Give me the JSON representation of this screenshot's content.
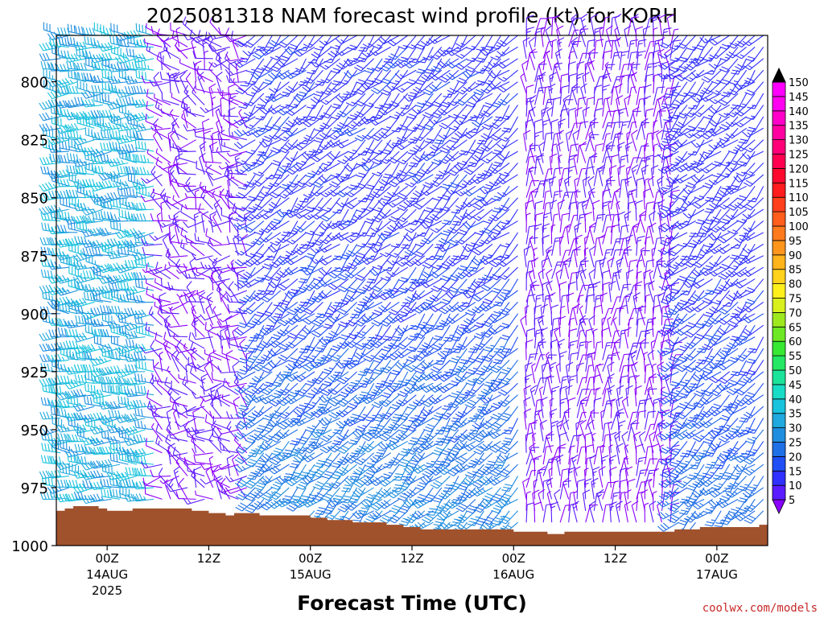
{
  "chart_data": {
    "type": "wind-barb time-height profile",
    "title": "2025081318 NAM forecast wind profile (kt) for KORH",
    "xlabel": "Forecast Time (UTC)",
    "ylabel": "",
    "y_axis": {
      "ticks": [
        800,
        825,
        850,
        875,
        900,
        925,
        950,
        975,
        1000
      ],
      "range_hpa": [
        780,
        1000
      ],
      "inverted": true
    },
    "x_axis": {
      "ticks": [
        {
          "hours": 6,
          "label": "00Z",
          "sub1": "14AUG",
          "sub2": "2025"
        },
        {
          "hours": 18,
          "label": "12Z",
          "sub1": "",
          "sub2": ""
        },
        {
          "hours": 30,
          "label": "00Z",
          "sub1": "15AUG",
          "sub2": ""
        },
        {
          "hours": 42,
          "label": "12Z",
          "sub1": "",
          "sub2": ""
        },
        {
          "hours": 54,
          "label": "00Z",
          "sub1": "16AUG",
          "sub2": ""
        },
        {
          "hours": 66,
          "label": "12Z",
          "sub1": "",
          "sub2": ""
        },
        {
          "hours": 78,
          "label": "00Z",
          "sub1": "17AUG",
          "sub2": ""
        }
      ],
      "range_hours": [
        0,
        84
      ]
    },
    "colorbar": {
      "levels": [
        5,
        10,
        15,
        20,
        25,
        30,
        35,
        40,
        45,
        50,
        55,
        60,
        65,
        70,
        75,
        80,
        85,
        90,
        95,
        100,
        105,
        110,
        115,
        120,
        125,
        130,
        135,
        140,
        145,
        150
      ],
      "colors": [
        "#8a00ff",
        "#5a1cff",
        "#3030ff",
        "#1f4ff5",
        "#1f6fe6",
        "#1f8ee0",
        "#1fa9dd",
        "#18c3dd",
        "#18dcc6",
        "#1ce39a",
        "#24e864",
        "#36e832",
        "#6ee824",
        "#9ee820",
        "#d8f01e",
        "#fff01c",
        "#ffd21c",
        "#ffb41c",
        "#ff961c",
        "#ff7a1c",
        "#ff5e1c",
        "#ff401c",
        "#ff1c1c",
        "#ff0a2e",
        "#ff0050",
        "#ff0078",
        "#ff00a0",
        "#ff00c8",
        "#ff00f0",
        "#ff00ff"
      ],
      "extend": "both"
    },
    "terrain_color": "#a0522d",
    "surface_pressure_hpa": [
      {
        "h": 0,
        "p": 985
      },
      {
        "h": 1,
        "p": 984
      },
      {
        "h": 2,
        "p": 983
      },
      {
        "h": 3,
        "p": 983
      },
      {
        "h": 4,
        "p": 983
      },
      {
        "h": 5,
        "p": 984
      },
      {
        "h": 6,
        "p": 985
      },
      {
        "h": 7,
        "p": 985
      },
      {
        "h": 8,
        "p": 985
      },
      {
        "h": 9,
        "p": 984
      },
      {
        "h": 10,
        "p": 984
      },
      {
        "h": 11,
        "p": 984
      },
      {
        "h": 12,
        "p": 984
      },
      {
        "h": 13,
        "p": 984
      },
      {
        "h": 14,
        "p": 984
      },
      {
        "h": 15,
        "p": 984
      },
      {
        "h": 16,
        "p": 985
      },
      {
        "h": 17,
        "p": 985
      },
      {
        "h": 18,
        "p": 986
      },
      {
        "h": 19,
        "p": 986
      },
      {
        "h": 20,
        "p": 987
      },
      {
        "h": 21,
        "p": 986
      },
      {
        "h": 22,
        "p": 986
      },
      {
        "h": 23,
        "p": 986
      },
      {
        "h": 24,
        "p": 987
      },
      {
        "h": 25,
        "p": 987
      },
      {
        "h": 26,
        "p": 987
      },
      {
        "h": 27,
        "p": 987
      },
      {
        "h": 28,
        "p": 987
      },
      {
        "h": 29,
        "p": 987
      },
      {
        "h": 30,
        "p": 988
      },
      {
        "h": 31,
        "p": 988
      },
      {
        "h": 32,
        "p": 989
      },
      {
        "h": 33,
        "p": 989
      },
      {
        "h": 34,
        "p": 989
      },
      {
        "h": 35,
        "p": 990
      },
      {
        "h": 36,
        "p": 990
      },
      {
        "h": 37,
        "p": 990
      },
      {
        "h": 38,
        "p": 990
      },
      {
        "h": 39,
        "p": 991
      },
      {
        "h": 40,
        "p": 991
      },
      {
        "h": 41,
        "p": 992
      },
      {
        "h": 42,
        "p": 992
      },
      {
        "h": 43,
        "p": 993
      },
      {
        "h": 44,
        "p": 993
      },
      {
        "h": 45,
        "p": 993
      },
      {
        "h": 46,
        "p": 993
      },
      {
        "h": 47,
        "p": 993
      },
      {
        "h": 48,
        "p": 993
      },
      {
        "h": 49,
        "p": 993
      },
      {
        "h": 50,
        "p": 993
      },
      {
        "h": 51,
        "p": 993
      },
      {
        "h": 52,
        "p": 993
      },
      {
        "h": 53,
        "p": 993
      },
      {
        "h": 54,
        "p": 994
      },
      {
        "h": 55,
        "p": 994
      },
      {
        "h": 56,
        "p": 994
      },
      {
        "h": 57,
        "p": 994
      },
      {
        "h": 58,
        "p": 995
      },
      {
        "h": 59,
        "p": 995
      },
      {
        "h": 60,
        "p": 994
      },
      {
        "h": 61,
        "p": 994
      },
      {
        "h": 62,
        "p": 994
      },
      {
        "h": 63,
        "p": 994
      },
      {
        "h": 64,
        "p": 994
      },
      {
        "h": 65,
        "p": 994
      },
      {
        "h": 66,
        "p": 994
      },
      {
        "h": 67,
        "p": 994
      },
      {
        "h": 68,
        "p": 994
      },
      {
        "h": 69,
        "p": 994
      },
      {
        "h": 70,
        "p": 994
      },
      {
        "h": 71,
        "p": 994
      },
      {
        "h": 72,
        "p": 994
      },
      {
        "h": 73,
        "p": 993
      },
      {
        "h": 74,
        "p": 993
      },
      {
        "h": 75,
        "p": 993
      },
      {
        "h": 76,
        "p": 992
      },
      {
        "h": 77,
        "p": 992
      },
      {
        "h": 78,
        "p": 992
      },
      {
        "h": 79,
        "p": 992
      },
      {
        "h": 80,
        "p": 992
      },
      {
        "h": 81,
        "p": 992
      },
      {
        "h": 82,
        "p": 992
      },
      {
        "h": 83,
        "p": 991
      },
      {
        "h": 84,
        "p": 991
      }
    ],
    "barb_levels_hpa": [
      780,
      785,
      790,
      795,
      800,
      805,
      810,
      815,
      820,
      825,
      830,
      835,
      840,
      845,
      850,
      855,
      860,
      865,
      870,
      875,
      880,
      885,
      890,
      895,
      900,
      905,
      910,
      915,
      920,
      925,
      930,
      935,
      940,
      945,
      950,
      955,
      960,
      965,
      970,
      975,
      980,
      985,
      990,
      995
    ],
    "wind_regimes": [
      {
        "hours": [
          0,
          11
        ],
        "speed_kt": [
          30,
          45
        ],
        "direction": "westerly"
      },
      {
        "hours": [
          12,
          22
        ],
        "speed_kt": [
          5,
          15
        ],
        "direction": "variable"
      },
      {
        "hours": [
          23,
          54
        ],
        "speed_kt": [
          15,
          35
        ],
        "direction": "southwesterly"
      },
      {
        "hours": [
          55,
          72
        ],
        "speed_kt": [
          5,
          15
        ],
        "direction": "northerly"
      },
      {
        "hours": [
          73,
          84
        ],
        "speed_kt": [
          15,
          30
        ],
        "direction": "southwesterly"
      }
    ]
  },
  "credit": "coolwx.com/models"
}
